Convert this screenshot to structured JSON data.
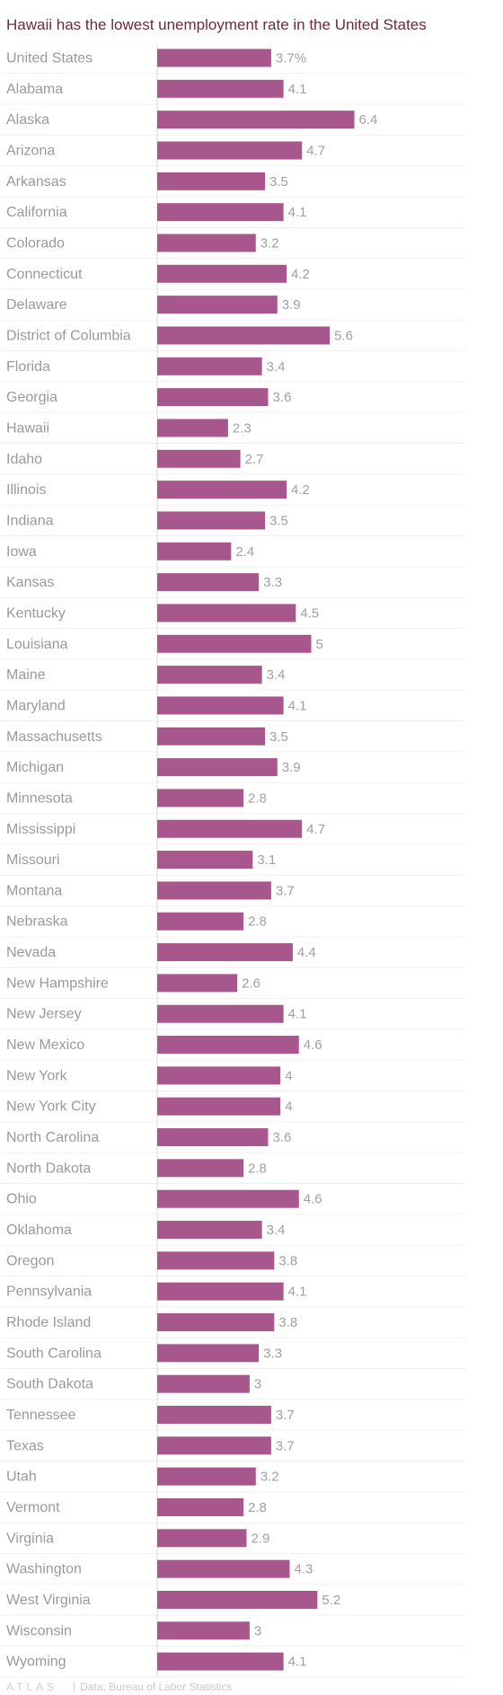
{
  "chart_data": {
    "type": "bar",
    "orientation": "horizontal",
    "title": "Hawaii has the lowest unemployment rate in the United States",
    "categories": [
      "United States",
      "Alabama",
      "Alaska",
      "Arizona",
      "Arkansas",
      "California",
      "Colorado",
      "Connecticut",
      "Delaware",
      "District of Columbia",
      "Florida",
      "Georgia",
      "Hawaii",
      "Idaho",
      "Illinois",
      "Indiana",
      "Iowa",
      "Kansas",
      "Kentucky",
      "Louisiana",
      "Maine",
      "Maryland",
      "Massachusetts",
      "Michigan",
      "Minnesota",
      "Mississippi",
      "Missouri",
      "Montana",
      "Nebraska",
      "Nevada",
      "New Hampshire",
      "New Jersey",
      "New Mexico",
      "New York",
      "New York City",
      "North Carolina",
      "North Dakota",
      "Ohio",
      "Oklahoma",
      "Oregon",
      "Pennsylvania",
      "Rhode Island",
      "South Carolina",
      "South Dakota",
      "Tennessee",
      "Texas",
      "Utah",
      "Vermont",
      "Virginia",
      "Washington",
      "West Virginia",
      "Wisconsin",
      "Wyoming"
    ],
    "values": [
      3.7,
      4.1,
      6.4,
      4.7,
      3.5,
      4.1,
      3.2,
      4.2,
      3.9,
      5.6,
      3.4,
      3.6,
      2.3,
      2.7,
      4.2,
      3.5,
      2.4,
      3.3,
      4.5,
      5,
      3.4,
      4.1,
      3.5,
      3.9,
      2.8,
      4.7,
      3.1,
      3.7,
      2.8,
      4.4,
      2.6,
      4.1,
      4.6,
      4,
      4,
      3.6,
      2.8,
      4.6,
      3.4,
      3.8,
      4.1,
      3.8,
      3.3,
      3,
      3.7,
      3.7,
      3.2,
      2.8,
      2.9,
      4.3,
      5.2,
      3,
      4.1
    ],
    "value_labels": [
      "3.7%",
      "4.1",
      "6.4",
      "4.7",
      "3.5",
      "4.1",
      "3.2",
      "4.2",
      "3.9",
      "5.6",
      "3.4",
      "3.6",
      "2.3",
      "2.7",
      "4.2",
      "3.5",
      "2.4",
      "3.3",
      "4.5",
      "5",
      "3.4",
      "4.1",
      "3.5",
      "3.9",
      "2.8",
      "4.7",
      "3.1",
      "3.7",
      "2.8",
      "4.4",
      "2.6",
      "4.1",
      "4.6",
      "4",
      "4",
      "3.6",
      "2.8",
      "4.6",
      "3.4",
      "3.8",
      "4.1",
      "3.8",
      "3.3",
      "3",
      "3.7",
      "3.7",
      "3.2",
      "2.8",
      "2.9",
      "4.3",
      "5.2",
      "3",
      "4.1"
    ],
    "xlim": [
      0,
      10
    ],
    "grid": true,
    "bar_color": "#a8578c"
  },
  "footer": {
    "brand": "ATLAS",
    "source": "Data: Bureau of Labor Statistics"
  }
}
